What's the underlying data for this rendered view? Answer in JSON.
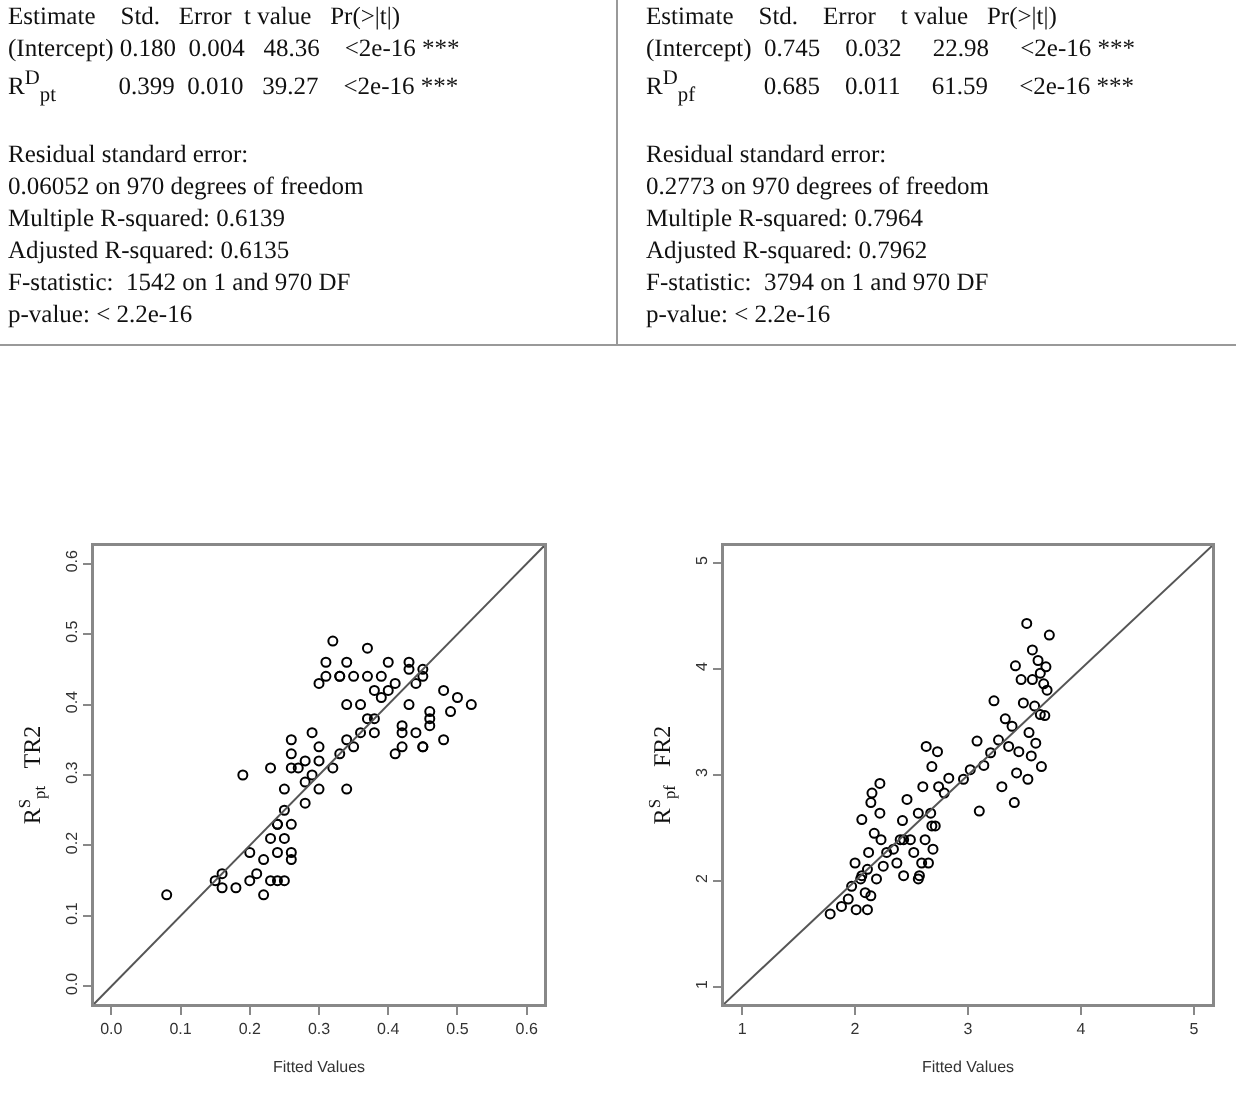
{
  "chart_data": [
    {
      "type": "other",
      "annotations": [
        "Estimate    Std.   Error  t value   Pr(>|t|)",
        "(Intercept) 0.180  0.004   48.36    <2e-16 ***",
        "R$^{D}$$_{pt}$          0.399  0.010   39.27    <2e-16 ***",
        "Residual standard error:",
        "0.06052 on 970 degrees of freedom",
        "Multiple R-squared: 0.6139",
        "Adjusted R-squared: 0.6135",
        "F-statistic:  1542 on 1 and 970 DF",
        "p-value: < 2.2e-16"
      ]
    },
    {
      "type": "other",
      "annotations": [
        "Estimate    Std.    Error    t value   Pr(>|t|)",
        "(Intercept)  0.745    0.032     22.98     <2e-16 ***",
        "R$^{D}$$_{pf}$           0.685    0.011     61.59     <2e-16 ***",
        "Residual standard error:",
        "0.2773 on 970 degrees of freedom",
        "Multiple R-squared: 0.7964",
        "Adjusted R-squared: 0.7962",
        "F-statistic:  3794 on 1 and 970 DF",
        "p-value: < 2.2e-16"
      ]
    },
    {
      "type": "scatter",
      "xlabel": "Fitted Values",
      "ylabel": "R$^{S}$$_{pt}$   TR2",
      "xlim": [
        -0.025,
        0.625
      ],
      "ylim": [
        -0.025,
        0.625
      ],
      "xticks": [
        {
          "value": 0,
          "label": "0.0"
        },
        0.1,
        0.2,
        0.3,
        0.4,
        0.5,
        0.6
      ],
      "yticks": [
        {
          "value": 0,
          "label": "0.0"
        },
        0.1,
        0.2,
        0.3,
        0.4,
        0.5,
        0.6
      ],
      "series": [
        {
          "color": "#000000",
          "marker": "circle",
          "x": [
            0.08,
            0.19,
            0.15,
            0.16,
            0.18,
            0.2,
            0.2,
            0.21,
            0.22,
            0.22,
            0.23,
            0.24,
            0.24,
            0.24,
            0.25,
            0.25,
            0.25,
            0.26,
            0.26,
            0.26,
            0.26,
            0.26,
            0.26,
            0.28,
            0.29,
            0.29,
            0.3,
            0.3,
            0.3,
            0.3,
            0.31,
            0.32,
            0.33,
            0.32,
            0.33,
            0.34,
            0.34,
            0.34,
            0.34,
            0.35,
            0.35,
            0.36,
            0.36,
            0.37,
            0.37,
            0.37,
            0.38,
            0.38,
            0.39,
            0.4,
            0.4,
            0.41,
            0.41,
            0.42,
            0.42,
            0.42,
            0.43,
            0.43,
            0.43,
            0.44,
            0.44,
            0.45,
            0.45,
            0.45,
            0.46,
            0.45,
            0.46,
            0.46,
            0.48,
            0.48,
            0.49,
            0.5,
            0.52,
            0.28,
            0.27,
            0.24,
            0.25,
            0.23,
            0.23,
            0.28,
            0.16,
            0.31,
            0.33,
            0.38,
            0.39
          ],
          "values": [
            0.13,
            0.3,
            0.15,
            0.16,
            0.14,
            0.15,
            0.19,
            0.16,
            0.13,
            0.18,
            0.31,
            0.15,
            0.23,
            0.19,
            0.21,
            0.28,
            0.25,
            0.31,
            0.19,
            0.23,
            0.35,
            0.33,
            0.18,
            0.26,
            0.3,
            0.36,
            0.32,
            0.28,
            0.34,
            0.43,
            0.46,
            0.49,
            0.44,
            0.31,
            0.33,
            0.28,
            0.35,
            0.4,
            0.46,
            0.34,
            0.44,
            0.4,
            0.36,
            0.48,
            0.44,
            0.38,
            0.42,
            0.38,
            0.44,
            0.42,
            0.46,
            0.33,
            0.43,
            0.36,
            0.37,
            0.34,
            0.46,
            0.45,
            0.4,
            0.43,
            0.36,
            0.34,
            0.45,
            0.44,
            0.39,
            0.34,
            0.38,
            0.37,
            0.35,
            0.42,
            0.39,
            0.41,
            0.4,
            0.32,
            0.31,
            0.23,
            0.15,
            0.15,
            0.21,
            0.29,
            0.14,
            0.44,
            0.44,
            0.36,
            0.41
          ]
        },
        {
          "type": "line",
          "color": "#555555",
          "marker": "none",
          "x": [
            -0.025,
            0.625
          ],
          "values": [
            -0.025,
            0.625
          ]
        }
      ]
    },
    {
      "type": "scatter",
      "xlabel": "Fitted Values",
      "ylabel": "R$^{S}$$_{pf}$   FR2",
      "xlim": [
        0.84,
        5.16
      ],
      "ylim": [
        0.84,
        5.16
      ],
      "xticks": [
        1,
        2,
        3,
        4,
        5
      ],
      "yticks": [
        1,
        2,
        3,
        4,
        5
      ],
      "series": [
        {
          "color": "#000000",
          "marker": "circle",
          "x": [
            1.78,
            1.88,
            1.94,
            1.97,
            2.0,
            2.01,
            2.05,
            2.06,
            2.09,
            2.11,
            2.12,
            2.14,
            2.15,
            2.17,
            2.19,
            2.22,
            2.23,
            2.22,
            2.25,
            2.28,
            2.34,
            2.37,
            2.4,
            2.42,
            2.43,
            2.46,
            2.49,
            2.52,
            2.56,
            2.57,
            2.59,
            2.6,
            2.62,
            2.63,
            2.65,
            2.67,
            2.68,
            2.69,
            2.71,
            2.73,
            2.74,
            2.79,
            2.83,
            2.96,
            3.02,
            3.08,
            3.1,
            3.14,
            3.2,
            3.23,
            3.27,
            3.3,
            3.33,
            3.36,
            3.39,
            3.41,
            3.42,
            3.43,
            3.45,
            3.47,
            3.49,
            3.52,
            3.53,
            3.54,
            3.56,
            3.57,
            3.59,
            3.6,
            3.62,
            3.64,
            3.64,
            3.65,
            3.67,
            3.69,
            3.7,
            3.72,
            3.68,
            3.57,
            2.06,
            2.14,
            2.11,
            2.43,
            2.56,
            2.68
          ],
          "values": [
            1.69,
            1.76,
            1.83,
            1.95,
            2.17,
            1.73,
            2.02,
            2.58,
            1.89,
            1.73,
            2.27,
            2.74,
            2.83,
            2.45,
            2.02,
            2.92,
            2.39,
            2.64,
            2.14,
            2.27,
            2.3,
            2.17,
            2.39,
            2.57,
            2.05,
            2.77,
            2.39,
            2.27,
            2.64,
            2.05,
            2.17,
            2.89,
            2.39,
            3.27,
            2.17,
            2.64,
            3.08,
            2.3,
            2.52,
            3.22,
            2.89,
            2.83,
            2.97,
            2.96,
            3.05,
            3.32,
            2.66,
            3.09,
            3.21,
            3.7,
            3.33,
            2.89,
            3.53,
            3.27,
            3.46,
            2.74,
            4.03,
            3.02,
            3.22,
            3.9,
            3.68,
            4.43,
            2.96,
            3.4,
            3.18,
            4.18,
            3.65,
            3.3,
            4.08,
            3.96,
            3.57,
            3.08,
            3.86,
            4.02,
            3.8,
            4.32,
            3.56,
            3.9,
            2.05,
            1.86,
            2.11,
            2.39,
            2.02,
            2.52
          ]
        },
        {
          "type": "line",
          "color": "#555555",
          "marker": "none",
          "x": [
            0.84,
            5.16
          ],
          "values": [
            0.84,
            5.16
          ]
        }
      ]
    }
  ]
}
